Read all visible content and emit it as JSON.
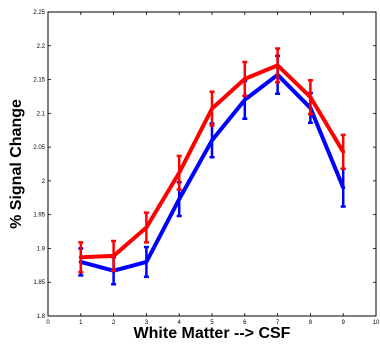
{
  "chart_data": {
    "type": "line",
    "title": "",
    "xlabel": "White Matter --> CSF",
    "ylabel": "% Signal Change",
    "xlim": [
      0,
      10
    ],
    "ylim": [
      1.8,
      2.25
    ],
    "xticks": [
      "0",
      "1",
      "2",
      "3",
      "4",
      "5",
      "6",
      "7",
      "8",
      "9",
      "10"
    ],
    "yticks": [
      "1.8",
      "1.85",
      "1.9",
      "1.95",
      "2",
      "2.05",
      "2.1",
      "2.15",
      "2.2",
      "2.25"
    ],
    "grid": false,
    "legend": "none",
    "x": [
      1,
      2,
      3,
      4,
      5,
      6,
      7,
      8,
      9
    ],
    "series": [
      {
        "color": "#0000ff",
        "values": [
          1.88,
          1.867,
          1.88,
          1.973,
          2.06,
          2.12,
          2.157,
          2.108,
          1.99
        ],
        "errors": [
          0.02,
          0.02,
          0.022,
          0.025,
          0.025,
          0.028,
          0.028,
          0.022,
          0.028
        ]
      },
      {
        "color": "#ff0000",
        "values": [
          1.887,
          1.889,
          1.931,
          2.012,
          2.107,
          2.151,
          2.171,
          2.124,
          2.043
        ],
        "errors": [
          0.022,
          0.022,
          0.022,
          0.025,
          0.025,
          0.025,
          0.025,
          0.025,
          0.025
        ]
      }
    ]
  }
}
